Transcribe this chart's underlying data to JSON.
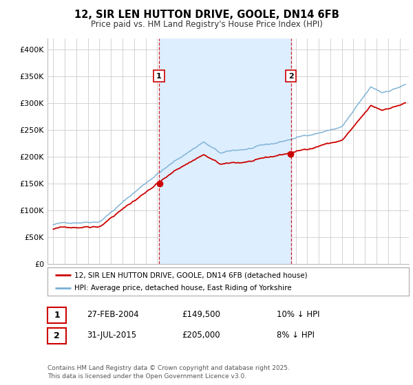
{
  "title": "12, SIR LEN HUTTON DRIVE, GOOLE, DN14 6FB",
  "subtitle": "Price paid vs. HM Land Registry's House Price Index (HPI)",
  "legend_line1": "12, SIR LEN HUTTON DRIVE, GOOLE, DN14 6FB (detached house)",
  "legend_line2": "HPI: Average price, detached house, East Riding of Yorkshire",
  "footnote": "Contains HM Land Registry data © Crown copyright and database right 2025.\nThis data is licensed under the Open Government Licence v3.0.",
  "sale1_date": "27-FEB-2004",
  "sale1_price": "£149,500",
  "sale1_hpi": "10% ↓ HPI",
  "sale2_date": "31-JUL-2015",
  "sale2_price": "£205,000",
  "sale2_hpi": "8% ↓ HPI",
  "sale1_x": 2004.15,
  "sale1_y": 149500,
  "sale2_x": 2015.58,
  "sale2_y": 205000,
  "vline1_x": 2004.15,
  "vline2_x": 2015.58,
  "ylim": [
    0,
    420000
  ],
  "xlim_start": 1994.5,
  "xlim_end": 2025.8,
  "fig_bg_color": "#ffffff",
  "plot_bg_color": "#ffffff",
  "shade_color": "#ddeeff",
  "red_color": "#cc0000",
  "blue_color": "#7ab0d4",
  "vline_color": "#cc0000",
  "grid_color": "#cccccc",
  "legend_border_color": "#aaaaaa"
}
